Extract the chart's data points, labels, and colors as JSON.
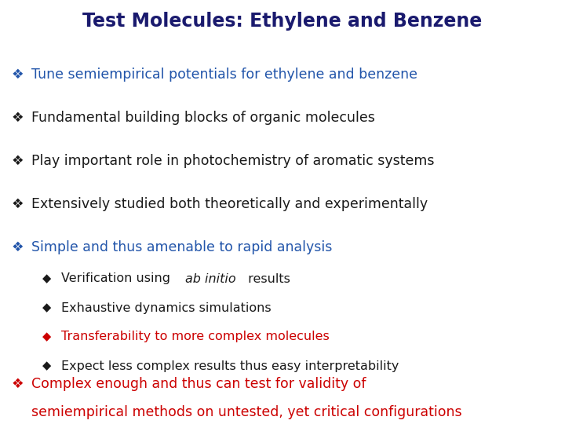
{
  "title": "Test Molecules: Ethylene and Benzene",
  "title_color": "#1a1a6e",
  "title_fontsize": 17,
  "background_color": "#ffffff",
  "main_bullets": [
    {
      "text": "Tune semiempirical potentials for ethylene and benzene",
      "color": "#2255aa",
      "diamond": "#2255aa"
    },
    {
      "text": "Fundamental building blocks of organic molecules",
      "color": "#1a1a1a",
      "diamond": "#1a1a1a"
    },
    {
      "text": "Play important role in photochemistry of aromatic systems",
      "color": "#1a1a1a",
      "diamond": "#1a1a1a"
    },
    {
      "text": "Extensively studied both theoretically and experimentally",
      "color": "#1a1a1a",
      "diamond": "#1a1a1a"
    },
    {
      "text": "Simple and thus amenable to rapid analysis",
      "color": "#2255aa",
      "diamond": "#2255aa"
    }
  ],
  "sub_bullets": [
    {
      "text_parts": [
        {
          "text": "Verification using ",
          "style": "normal"
        },
        {
          "text": "ab initio",
          "style": "italic"
        },
        {
          "text": " results",
          "style": "normal"
        }
      ],
      "color": "#1a1a1a",
      "diamond": "#1a1a1a"
    },
    {
      "text_parts": [
        {
          "text": "Exhaustive dynamics simulations",
          "style": "normal"
        }
      ],
      "color": "#1a1a1a",
      "diamond": "#1a1a1a"
    },
    {
      "text_parts": [
        {
          "text": "Transferability to more complex molecules",
          "style": "normal"
        }
      ],
      "color": "#cc0000",
      "diamond": "#cc0000"
    },
    {
      "text_parts": [
        {
          "text": "Expect less complex results thus easy interpretability",
          "style": "normal"
        }
      ],
      "color": "#1a1a1a",
      "diamond": "#1a1a1a"
    }
  ],
  "last_bullet_line1": "Complex enough and thus can test for validity of",
  "last_bullet_line2": "semiempirical methods on untested, yet critical configurations",
  "last_color": "#cc0000",
  "main_fontsize": 12.5,
  "sub_fontsize": 11.5,
  "last_fontsize": 12.5
}
